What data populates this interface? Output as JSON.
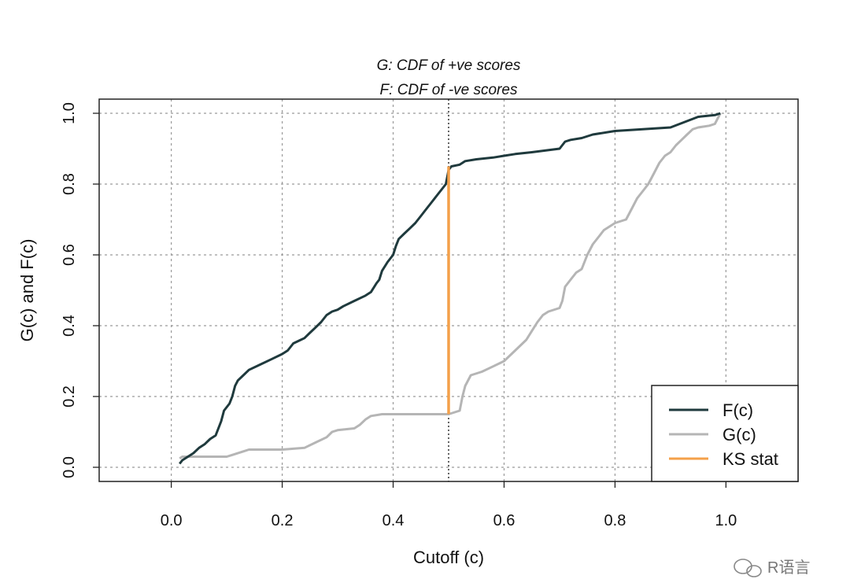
{
  "chart_data": {
    "type": "line",
    "title_lines": [
      "G: CDF of +ve scores",
      "F: CDF of -ve scores"
    ],
    "xlabel": "Cutoff (c)",
    "ylabel": "G(c) and F(c)",
    "xlim": [
      -0.13,
      1.13
    ],
    "ylim": [
      -0.04,
      1.04
    ],
    "x_ticks": [
      "0.0",
      "0.2",
      "0.4",
      "0.6",
      "0.8",
      "1.0"
    ],
    "y_ticks": [
      "0.0",
      "0.2",
      "0.4",
      "0.6",
      "0.8",
      "1.0"
    ],
    "grid": true,
    "legend_position": "bottom-right",
    "series": [
      {
        "name": "F(c)",
        "color": "#1f3a3d",
        "points": [
          [
            0.015,
            0.01
          ],
          [
            0.02,
            0.02
          ],
          [
            0.03,
            0.03
          ],
          [
            0.04,
            0.04
          ],
          [
            0.05,
            0.055
          ],
          [
            0.06,
            0.065
          ],
          [
            0.07,
            0.08
          ],
          [
            0.08,
            0.09
          ],
          [
            0.085,
            0.11
          ],
          [
            0.09,
            0.13
          ],
          [
            0.095,
            0.16
          ],
          [
            0.1,
            0.17
          ],
          [
            0.105,
            0.18
          ],
          [
            0.11,
            0.2
          ],
          [
            0.115,
            0.23
          ],
          [
            0.12,
            0.245
          ],
          [
            0.13,
            0.26
          ],
          [
            0.14,
            0.275
          ],
          [
            0.16,
            0.29
          ],
          [
            0.18,
            0.305
          ],
          [
            0.2,
            0.32
          ],
          [
            0.21,
            0.33
          ],
          [
            0.22,
            0.35
          ],
          [
            0.24,
            0.365
          ],
          [
            0.25,
            0.38
          ],
          [
            0.26,
            0.395
          ],
          [
            0.27,
            0.41
          ],
          [
            0.28,
            0.43
          ],
          [
            0.29,
            0.44
          ],
          [
            0.3,
            0.445
          ],
          [
            0.31,
            0.455
          ],
          [
            0.33,
            0.47
          ],
          [
            0.35,
            0.485
          ],
          [
            0.36,
            0.495
          ],
          [
            0.37,
            0.52
          ],
          [
            0.375,
            0.53
          ],
          [
            0.38,
            0.555
          ],
          [
            0.39,
            0.58
          ],
          [
            0.4,
            0.6
          ],
          [
            0.405,
            0.625
          ],
          [
            0.41,
            0.645
          ],
          [
            0.42,
            0.66
          ],
          [
            0.43,
            0.675
          ],
          [
            0.44,
            0.69
          ],
          [
            0.45,
            0.71
          ],
          [
            0.46,
            0.73
          ],
          [
            0.47,
            0.75
          ],
          [
            0.48,
            0.77
          ],
          [
            0.49,
            0.79
          ],
          [
            0.495,
            0.8
          ],
          [
            0.5,
            0.84
          ],
          [
            0.505,
            0.85
          ],
          [
            0.52,
            0.855
          ],
          [
            0.53,
            0.865
          ],
          [
            0.55,
            0.87
          ],
          [
            0.58,
            0.875
          ],
          [
            0.6,
            0.88
          ],
          [
            0.62,
            0.885
          ],
          [
            0.65,
            0.89
          ],
          [
            0.7,
            0.9
          ],
          [
            0.71,
            0.92
          ],
          [
            0.72,
            0.925
          ],
          [
            0.74,
            0.93
          ],
          [
            0.76,
            0.94
          ],
          [
            0.8,
            0.95
          ],
          [
            0.85,
            0.955
          ],
          [
            0.9,
            0.96
          ],
          [
            0.95,
            0.99
          ],
          [
            0.98,
            0.995
          ],
          [
            0.99,
            1.0
          ]
        ]
      },
      {
        "name": "G(c)",
        "color": "#b5b5b5",
        "points": [
          [
            0.015,
            0.025
          ],
          [
            0.02,
            0.03
          ],
          [
            0.05,
            0.03
          ],
          [
            0.1,
            0.03
          ],
          [
            0.11,
            0.035
          ],
          [
            0.13,
            0.045
          ],
          [
            0.14,
            0.05
          ],
          [
            0.2,
            0.05
          ],
          [
            0.24,
            0.055
          ],
          [
            0.26,
            0.07
          ],
          [
            0.28,
            0.085
          ],
          [
            0.29,
            0.1
          ],
          [
            0.3,
            0.105
          ],
          [
            0.33,
            0.11
          ],
          [
            0.34,
            0.12
          ],
          [
            0.35,
            0.135
          ],
          [
            0.36,
            0.145
          ],
          [
            0.38,
            0.15
          ],
          [
            0.5,
            0.15
          ],
          [
            0.52,
            0.16
          ],
          [
            0.525,
            0.2
          ],
          [
            0.53,
            0.23
          ],
          [
            0.54,
            0.26
          ],
          [
            0.56,
            0.27
          ],
          [
            0.58,
            0.285
          ],
          [
            0.6,
            0.3
          ],
          [
            0.62,
            0.33
          ],
          [
            0.64,
            0.36
          ],
          [
            0.65,
            0.385
          ],
          [
            0.66,
            0.41
          ],
          [
            0.67,
            0.43
          ],
          [
            0.68,
            0.44
          ],
          [
            0.7,
            0.45
          ],
          [
            0.705,
            0.47
          ],
          [
            0.71,
            0.51
          ],
          [
            0.72,
            0.53
          ],
          [
            0.73,
            0.55
          ],
          [
            0.74,
            0.56
          ],
          [
            0.75,
            0.6
          ],
          [
            0.76,
            0.63
          ],
          [
            0.77,
            0.65
          ],
          [
            0.78,
            0.67
          ],
          [
            0.79,
            0.68
          ],
          [
            0.8,
            0.69
          ],
          [
            0.82,
            0.7
          ],
          [
            0.83,
            0.73
          ],
          [
            0.84,
            0.76
          ],
          [
            0.85,
            0.78
          ],
          [
            0.86,
            0.8
          ],
          [
            0.87,
            0.83
          ],
          [
            0.88,
            0.86
          ],
          [
            0.89,
            0.88
          ],
          [
            0.9,
            0.89
          ],
          [
            0.91,
            0.91
          ],
          [
            0.92,
            0.925
          ],
          [
            0.93,
            0.94
          ],
          [
            0.94,
            0.955
          ],
          [
            0.95,
            0.96
          ],
          [
            0.97,
            0.965
          ],
          [
            0.98,
            0.97
          ],
          [
            0.99,
            1.0
          ]
        ]
      }
    ],
    "ks_stat": {
      "name": "KS stat",
      "color": "#f4a04a",
      "x": 0.5,
      "y_from": 0.15,
      "y_to": 0.85
    },
    "vline": {
      "x": 0.5
    }
  },
  "watermark": "R语言",
  "watermark_icon": "wechat-icon"
}
